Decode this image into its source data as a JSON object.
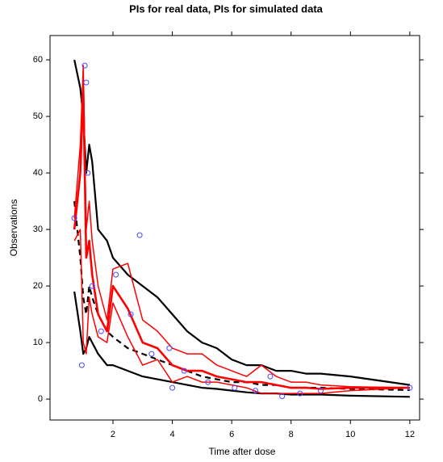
{
  "chart_data": {
    "type": "line",
    "title": "PIs for real data, PIs for simulated data",
    "x_label": "Time after dose",
    "y_label": "Observations",
    "x": [
      0.7,
      0.9,
      1.0,
      1.1,
      1.2,
      1.3,
      1.5,
      1.8,
      2.0,
      2.5,
      3.0,
      3.5,
      4.0,
      4.5,
      5.0,
      5.5,
      6.0,
      6.5,
      7.0,
      7.5,
      8.0,
      8.5,
      9.0,
      10.0,
      12.0
    ],
    "series": [
      {
        "color": "#000000",
        "dash": false,
        "width": 2.2,
        "values": [
          60,
          55,
          50,
          40,
          45,
          42,
          30,
          28,
          25,
          22,
          20,
          18,
          15,
          12,
          10,
          9,
          7,
          6,
          6,
          5,
          5,
          4.5,
          4.5,
          4,
          2.5
        ]
      },
      {
        "color": "#000000",
        "dash": true,
        "width": 2.2,
        "values": [
          35,
          25,
          18,
          15,
          20,
          18,
          15,
          12,
          11,
          9,
          8,
          7,
          6,
          5,
          4,
          3.5,
          3,
          3,
          2.5,
          2.5,
          2,
          2,
          2,
          1.8,
          1.6
        ]
      },
      {
        "color": "#000000",
        "dash": false,
        "width": 2.2,
        "values": [
          19,
          12,
          8,
          9,
          11,
          10,
          8,
          6,
          6,
          5,
          4,
          3.5,
          3,
          2.5,
          2,
          1.8,
          1.5,
          1.2,
          1,
          1,
          0.8,
          0.8,
          0.8,
          0.6,
          0.4
        ]
      },
      {
        "color": "#ff0000",
        "dash": false,
        "width": 1.5,
        "values": [
          32,
          45,
          59,
          30,
          35,
          28,
          20,
          14,
          23,
          24,
          14,
          12,
          9,
          8,
          8,
          6,
          5,
          4,
          6,
          4,
          3,
          3,
          2.5,
          2.2,
          2
        ]
      },
      {
        "color": "#ff0000",
        "dash": false,
        "width": 2.6,
        "values": [
          30,
          40,
          55,
          25,
          28,
          22,
          15,
          12,
          20,
          16,
          10,
          9,
          6,
          5,
          5,
          4,
          3.5,
          3,
          3,
          2.5,
          2,
          2,
          1.8,
          2,
          2
        ]
      },
      {
        "color": "#ff0000",
        "dash": false,
        "width": 1.5,
        "values": [
          28,
          30,
          10,
          8,
          18,
          15,
          11,
          10,
          17,
          11,
          6,
          7,
          3,
          4,
          3,
          3,
          2.5,
          2,
          1,
          1,
          1,
          1,
          1,
          1.5,
          2
        ]
      }
    ],
    "points": {
      "color": "#4a4aff",
      "x": [
        0.7,
        0.95,
        1.05,
        1.1,
        1.15,
        1.3,
        1.6,
        2.1,
        2.6,
        2.9,
        3.3,
        3.9,
        4.0,
        4.4,
        5.2,
        6.1,
        6.8,
        7.3,
        7.7,
        8.3,
        9.0,
        12.0
      ],
      "y": [
        32,
        6,
        59,
        56,
        40,
        20,
        12,
        22,
        15,
        29,
        8,
        9,
        2,
        5,
        3,
        2,
        1.5,
        4,
        0.5,
        1,
        1.5,
        2
      ]
    },
    "xlim": [
      -0.12,
      12.33
    ],
    "ylim": [
      -3.7,
      64.3
    ],
    "xticks": [
      2,
      4,
      6,
      8,
      10,
      12
    ],
    "yticks": [
      0,
      10,
      20,
      30,
      40,
      50,
      60
    ]
  }
}
